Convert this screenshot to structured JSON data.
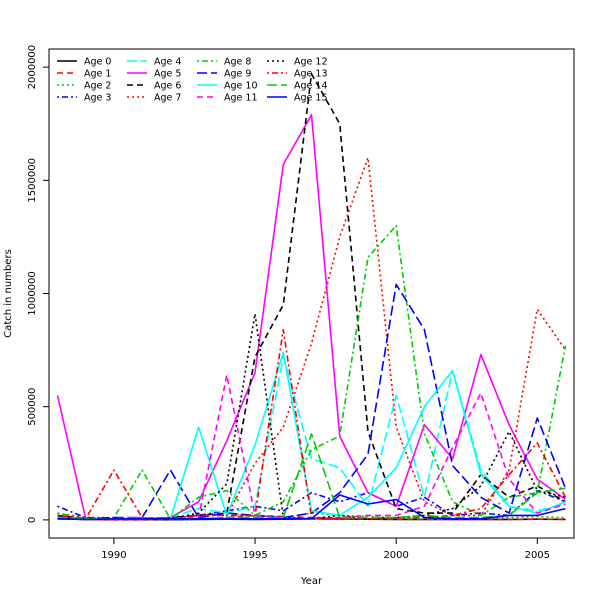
{
  "chart_data": {
    "type": "line",
    "xlabel": "Year",
    "ylabel": "Catch in numbers",
    "xlim": [
      1987.7,
      2006.3
    ],
    "ylim": [
      -80000,
      2080000
    ],
    "xticks": [
      1990,
      1995,
      2000,
      2005
    ],
    "yticks": [
      0,
      500000,
      1000000,
      1500000,
      2000000
    ],
    "xtick_labels": [
      "1990",
      "1995",
      "2000",
      "2005"
    ],
    "ytick_labels": [
      "0",
      "500000",
      "1000000",
      "1500000",
      "2000000"
    ],
    "legend_position": "top-left",
    "years": [
      1988,
      1989,
      1990,
      1991,
      1992,
      1993,
      1994,
      1995,
      1996,
      1997,
      1998,
      1999,
      2000,
      2001,
      2002,
      2003,
      2004,
      2005,
      2006
    ],
    "series": [
      {
        "name": "Age 0",
        "color": "#000000",
        "dash": "solid",
        "values": [
          5000,
          2000,
          1000,
          1000,
          1000,
          2000,
          3000,
          2000,
          3000,
          5000,
          4000,
          3000,
          2000,
          2000,
          2000,
          2000,
          2000,
          3000,
          2000
        ]
      },
      {
        "name": "Age 1",
        "color": "#ff0000",
        "dash": "dashed",
        "values": [
          5000,
          2000,
          1000,
          1000,
          2000,
          5000,
          10000,
          20000,
          15000,
          10000,
          8000,
          5000,
          3000,
          2000,
          2000,
          2000,
          2000,
          3000,
          3000
        ]
      },
      {
        "name": "Age 2",
        "color": "#00cd00",
        "dash": "dotted",
        "values": [
          10000,
          3000,
          5000,
          5000,
          10000,
          20000,
          30000,
          15000,
          10000,
          30000,
          20000,
          15000,
          10000,
          5000,
          5000,
          8000,
          10000,
          15000,
          10000
        ]
      },
      {
        "name": "Age 3",
        "color": "#0000ff",
        "dash": "dashdot",
        "values": [
          60000,
          10000,
          5000,
          5000,
          10000,
          20000,
          40000,
          60000,
          40000,
          120000,
          80000,
          120000,
          60000,
          100000,
          20000,
          30000,
          20000,
          130000,
          80000
        ]
      },
      {
        "name": "Age 4",
        "color": "#00ffff",
        "dash": "longdash",
        "values": [
          15000,
          5000,
          5000,
          5000,
          10000,
          50000,
          30000,
          60000,
          720000,
          270000,
          230000,
          60000,
          550000,
          100000,
          660000,
          220000,
          60000,
          40000,
          70000
        ]
      },
      {
        "name": "Age 5",
        "color": "#ff00ff",
        "dash": "solid",
        "values": [
          550000,
          5000,
          5000,
          5000,
          10000,
          80000,
          350000,
          650000,
          1570000,
          1790000,
          370000,
          120000,
          60000,
          420000,
          270000,
          730000,
          420000,
          180000,
          90000
        ]
      },
      {
        "name": "Age 6",
        "color": "#000000",
        "dash": "dashed",
        "values": [
          20000,
          5000,
          5000,
          5000,
          10000,
          20000,
          30000,
          720000,
          950000,
          1970000,
          1750000,
          390000,
          50000,
          30000,
          30000,
          200000,
          100000,
          150000,
          80000
        ]
      },
      {
        "name": "Age 7",
        "color": "#ff0000",
        "dash": "dotted",
        "values": [
          30000,
          10000,
          10000,
          5000,
          10000,
          20000,
          20000,
          250000,
          410000,
          780000,
          1250000,
          1600000,
          410000,
          80000,
          20000,
          20000,
          220000,
          930000,
          750000
        ]
      },
      {
        "name": "Age 8",
        "color": "#00cd00",
        "dash": "dashdot",
        "values": [
          30000,
          5000,
          10000,
          220000,
          5000,
          100000,
          130000,
          20000,
          80000,
          310000,
          370000,
          1160000,
          1300000,
          380000,
          80000,
          20000,
          100000,
          120000,
          770000
        ]
      },
      {
        "name": "Age 9",
        "color": "#0000ff",
        "dash": "longdash",
        "values": [
          5000,
          5000,
          10000,
          10000,
          220000,
          10000,
          30000,
          20000,
          10000,
          30000,
          120000,
          290000,
          1040000,
          840000,
          240000,
          100000,
          30000,
          450000,
          140000
        ]
      },
      {
        "name": "Age 10",
        "color": "#00ffff",
        "dash": "solid",
        "values": [
          10000,
          5000,
          5000,
          5000,
          5000,
          410000,
          20000,
          330000,
          740000,
          40000,
          20000,
          100000,
          230000,
          500000,
          660000,
          200000,
          60000,
          30000,
          80000
        ]
      },
      {
        "name": "Age 11",
        "color": "#ff00ff",
        "dash": "dashed",
        "values": [
          10000,
          5000,
          5000,
          10000,
          5000,
          10000,
          640000,
          20000,
          10000,
          5000,
          10000,
          20000,
          20000,
          60000,
          320000,
          560000,
          180000,
          30000,
          70000
        ]
      },
      {
        "name": "Age 12",
        "color": "#000000",
        "dash": "dotted",
        "values": [
          10000,
          5000,
          5000,
          5000,
          5000,
          30000,
          160000,
          910000,
          10000,
          5000,
          20000,
          5000,
          10000,
          20000,
          50000,
          150000,
          390000,
          130000,
          100000
        ]
      },
      {
        "name": "Age 13",
        "color": "#ff0000",
        "dash": "dashdot",
        "values": [
          20000,
          5000,
          220000,
          10000,
          5000,
          20000,
          20000,
          20000,
          840000,
          10000,
          5000,
          5000,
          10000,
          10000,
          20000,
          50000,
          200000,
          340000,
          100000
        ]
      },
      {
        "name": "Age 14",
        "color": "#00cd00",
        "dash": "longdash",
        "values": [
          10000,
          5000,
          5000,
          10000,
          5000,
          5000,
          10000,
          10000,
          10000,
          380000,
          10000,
          10000,
          10000,
          20000,
          10000,
          10000,
          20000,
          120000,
          140000
        ]
      },
      {
        "name": "Age 15",
        "color": "#0000ff",
        "dash": "solid",
        "values": [
          5000,
          2000,
          5000,
          5000,
          5000,
          5000,
          5000,
          5000,
          5000,
          5000,
          110000,
          70000,
          90000,
          10000,
          5000,
          5000,
          20000,
          20000,
          50000
        ]
      }
    ]
  }
}
